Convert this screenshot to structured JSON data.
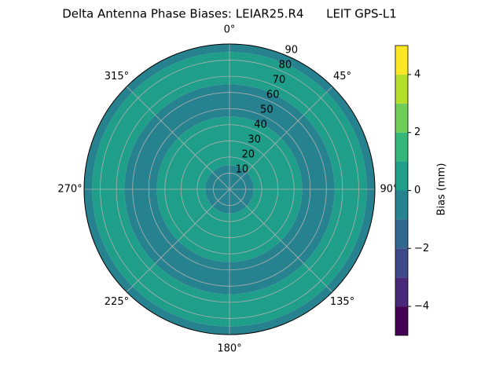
{
  "chart_data": {
    "type": "polar_contour",
    "title": "Delta Antenna Phase Biases: LEIAR25.R4      LEIT GPS-L1",
    "colorbar_label": "Bias (mm)",
    "levels": [
      -5,
      -4,
      -3,
      -2,
      -1,
      0,
      1,
      2,
      3,
      4,
      5
    ],
    "colors": [
      "#440154",
      "#482878",
      "#3e4989",
      "#31688e",
      "#26828e",
      "#1f9e89",
      "#35b779",
      "#6ece58",
      "#b5de2b",
      "#fde725"
    ],
    "bands": [
      {
        "r": [
          0,
          15
        ],
        "level": -1
      },
      {
        "r": [
          15,
          45
        ],
        "level": 0
      },
      {
        "r": [
          45,
          65
        ],
        "level": -1
      },
      {
        "r": [
          65,
          85
        ],
        "level": 0
      },
      {
        "r": [
          85,
          90
        ],
        "level": -1
      }
    ],
    "rlim": [
      0,
      90
    ],
    "rticks": [
      10,
      20,
      30,
      40,
      50,
      60,
      70,
      80,
      90
    ],
    "thetaticks": [
      {
        "value": 0,
        "label": "0°"
      },
      {
        "value": 45,
        "label": "45°"
      },
      {
        "value": 90,
        "label": "90°"
      },
      {
        "value": 135,
        "label": "135°"
      },
      {
        "value": 180,
        "label": "180°"
      },
      {
        "value": 225,
        "label": "225°"
      },
      {
        "value": 270,
        "label": "270°"
      },
      {
        "value": 315,
        "label": "315°"
      }
    ],
    "clim": [
      -5,
      5
    ],
    "cticks": [
      {
        "value": -4,
        "label": "−4"
      },
      {
        "value": -2,
        "label": "−2"
      },
      0,
      2,
      4
    ],
    "grid": true
  }
}
